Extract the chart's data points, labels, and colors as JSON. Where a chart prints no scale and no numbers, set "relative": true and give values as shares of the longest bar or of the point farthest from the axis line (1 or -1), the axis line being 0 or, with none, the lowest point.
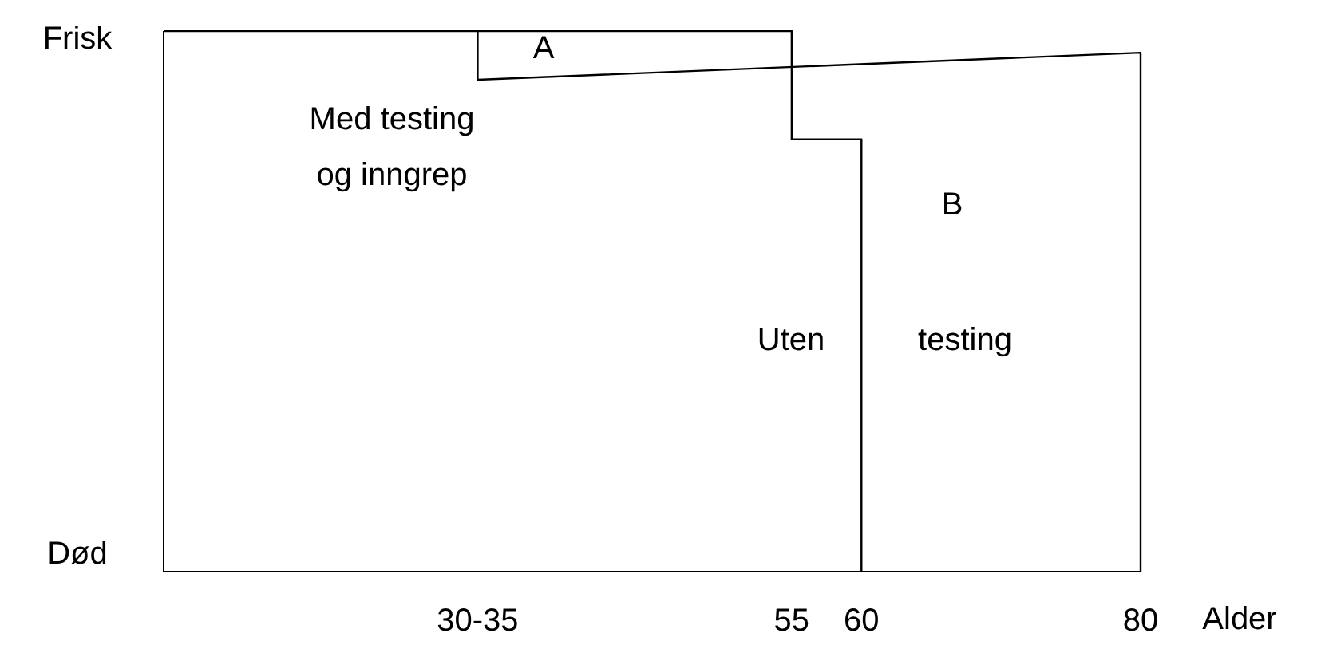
{
  "chart_data": {
    "type": "line",
    "xlabel": "Alder",
    "xlim": [
      10,
      80
    ],
    "relative": true,
    "xticks": [
      {
        "value": 32.5,
        "label": "30-35"
      },
      55,
      60,
      80
    ],
    "series": [
      {
        "color": "#000000",
        "x": [
          10,
          55,
          55,
          60,
          60
        ],
        "values": [
          1,
          1,
          0.8,
          0.8,
          0
        ]
      },
      {
        "color": "#000000",
        "x": [
          32.5,
          32.5,
          80,
          80
        ],
        "values": [
          1,
          0.91,
          0.96,
          0
        ]
      }
    ],
    "annotations": [
      "A",
      "B",
      "Med testing\nog inngrep",
      "Uten",
      "testing",
      "Frisk",
      "Død"
    ],
    "grid": false,
    "marker": "none",
    "line_style": "solid"
  }
}
